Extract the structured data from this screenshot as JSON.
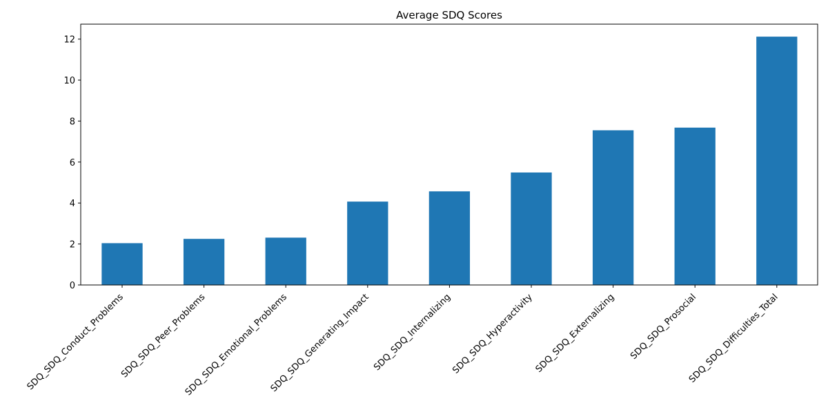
{
  "chart_data": {
    "type": "bar",
    "title": "Average SDQ Scores",
    "xlabel": "",
    "ylabel": "",
    "categories": [
      "SDQ_SDQ_Conduct_Problems",
      "SDQ_SDQ_Peer_Problems",
      "SDQ_SDQ_Emotional_Problems",
      "SDQ_SDQ_Generating_Impact",
      "SDQ_SDQ_Internalizing",
      "SDQ_SDQ_Hyperactivity",
      "SDQ_SDQ_Externalizing",
      "SDQ_SDQ_Prosocial",
      "SDQ_SDQ_Difficulties_Total"
    ],
    "values": [
      2.04,
      2.25,
      2.31,
      4.07,
      4.57,
      5.49,
      7.55,
      7.68,
      12.12
    ],
    "ylim": [
      0,
      12.73
    ],
    "yticks": [
      0,
      2,
      4,
      6,
      8,
      10,
      12
    ],
    "grid": false,
    "legend": "none",
    "bar_color": "#1f77b4"
  }
}
